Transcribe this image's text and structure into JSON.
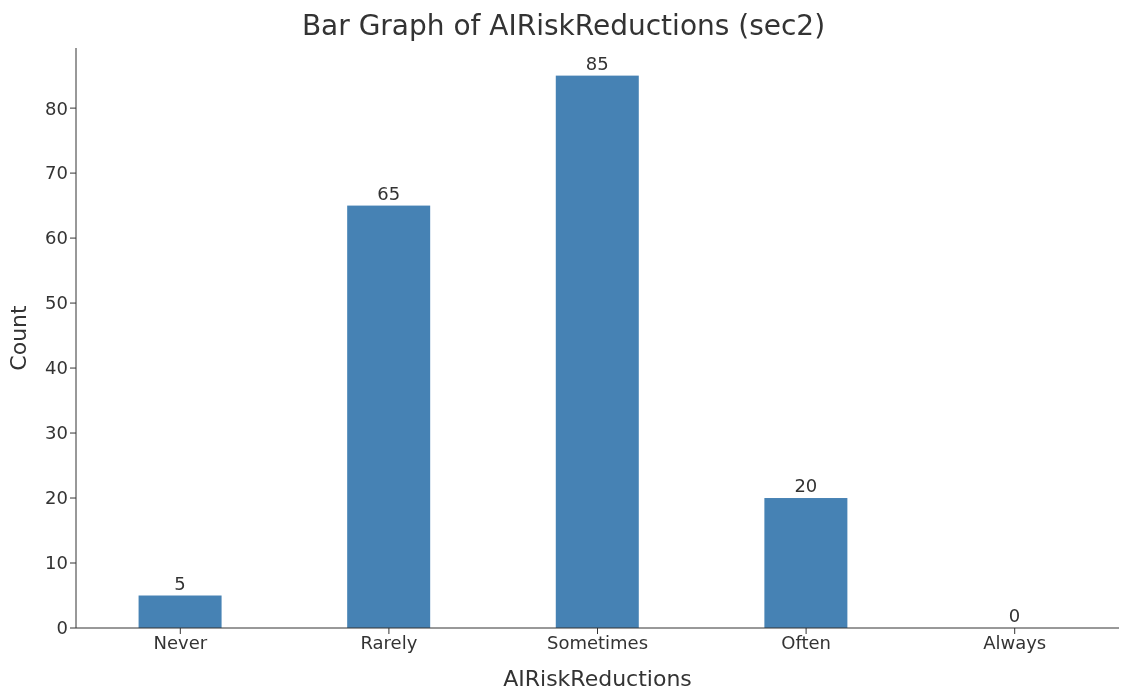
{
  "chart_data": {
    "type": "bar",
    "title": "Bar Graph of AIRiskReductions (sec2)",
    "xlabel": "AIRiskReductions",
    "ylabel": "Count",
    "categories": [
      "Never",
      "Rarely",
      "Sometimes",
      "Often",
      "Always"
    ],
    "values": [
      5,
      65,
      85,
      20,
      0
    ],
    "color": "#4682b4",
    "ylim": [
      0,
      89.25
    ],
    "yticks": [
      0,
      10,
      20,
      30,
      40,
      50,
      60,
      70,
      80
    ],
    "grid": false,
    "data_labels": true
  }
}
